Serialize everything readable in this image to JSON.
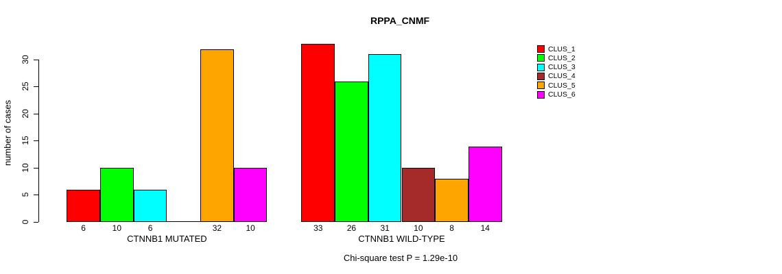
{
  "chart_data": {
    "type": "bar",
    "title": "RPPA_CNMF",
    "ylabel": "number of cases",
    "xlabel": "",
    "ylim": [
      0,
      33
    ],
    "yticks": [
      0,
      5,
      10,
      15,
      20,
      25,
      30
    ],
    "grid": false,
    "legend_position": "right",
    "categories": [
      "CTNNB1 MUTATED",
      "CTNNB1 WILD-TYPE"
    ],
    "series": [
      {
        "name": "CLUS_1",
        "color": "#FF0000",
        "values": [
          6,
          33
        ]
      },
      {
        "name": "CLUS_2",
        "color": "#00FF00",
        "values": [
          10,
          26
        ]
      },
      {
        "name": "CLUS_3",
        "color": "#00FFFF",
        "values": [
          6,
          31
        ]
      },
      {
        "name": "CLUS_4",
        "color": "#A52A2A",
        "values": [
          0,
          10
        ]
      },
      {
        "name": "CLUS_5",
        "color": "#FFA500",
        "values": [
          32,
          8
        ]
      },
      {
        "name": "CLUS_6",
        "color": "#FF00FF",
        "values": [
          10,
          14
        ]
      }
    ],
    "bar_value_labels": [
      [
        "6",
        "10",
        "6",
        "",
        "32",
        "10"
      ],
      [
        "33",
        "26",
        "31",
        "10",
        "8",
        "14"
      ]
    ],
    "annotation": "Chi-square test P = 1.29e-10",
    "bar_border_color": "#000000",
    "background_color": "#FFFFFF"
  }
}
